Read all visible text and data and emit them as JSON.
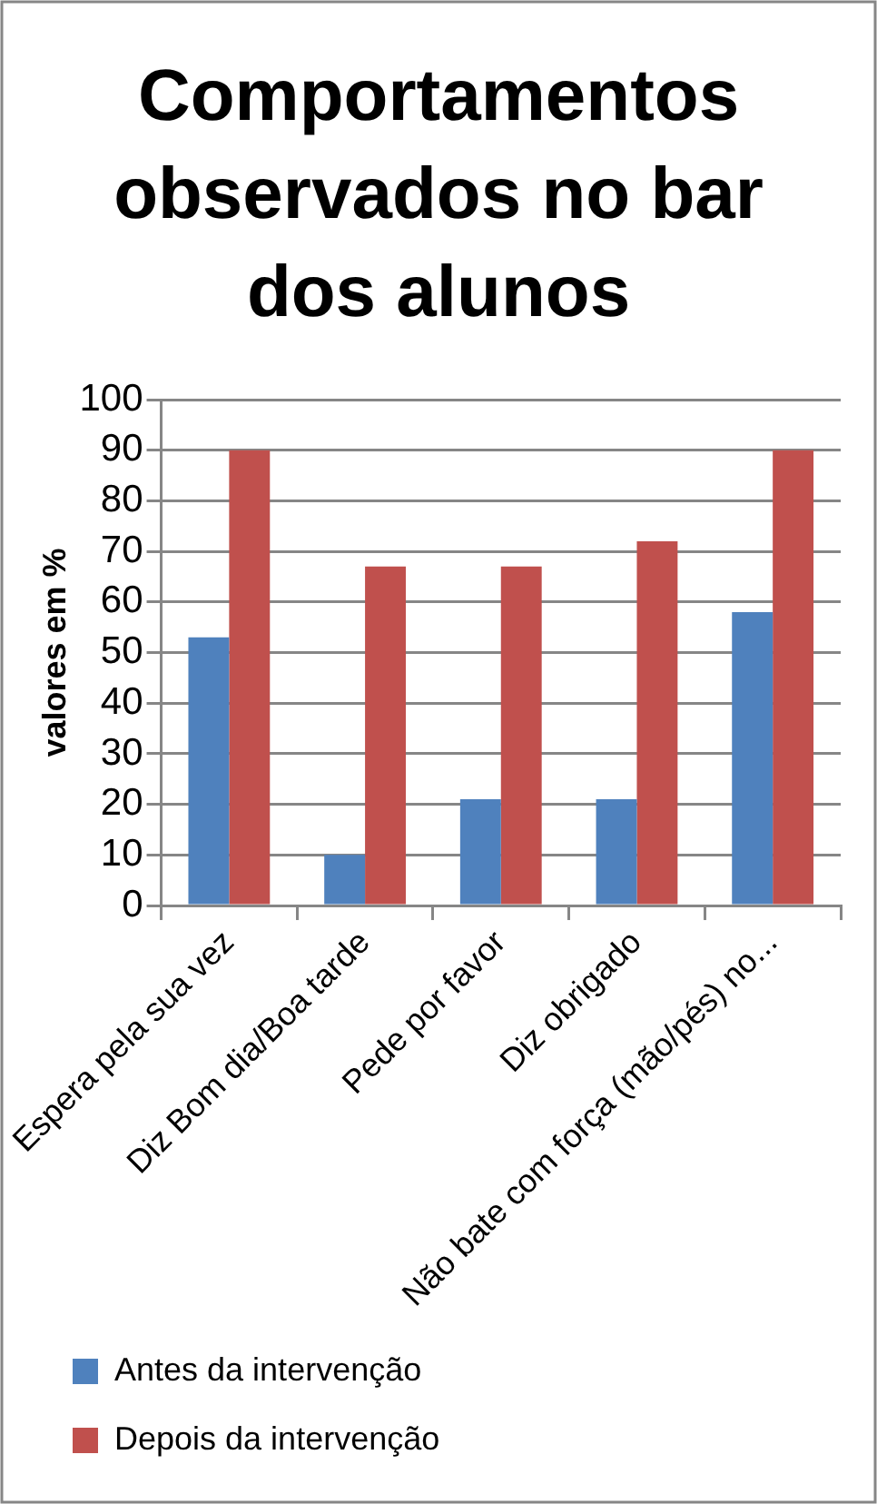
{
  "chart_data": {
    "type": "bar",
    "title": "Comportamentos observados no bar dos alunos",
    "ylabel": "valores em %",
    "categories": [
      "Espera pela sua vez",
      "Diz Bom dia/Boa tarde",
      "Pede por favor",
      "Diz obrigado",
      "Não bate com força (mão/pés) no..."
    ],
    "series": [
      {
        "name": "Antes da intervenção",
        "color": "#4f81bd",
        "values": [
          53,
          10,
          21,
          21,
          58
        ]
      },
      {
        "name": "Depois da intervenção",
        "color": "#c0504d",
        "values": [
          90,
          67,
          67,
          72,
          90
        ]
      }
    ],
    "ylim": [
      0,
      100
    ],
    "yticks": [
      0,
      10,
      20,
      30,
      40,
      50,
      60,
      70,
      80,
      90,
      100
    ],
    "grid": "y",
    "legend": "bottom"
  }
}
